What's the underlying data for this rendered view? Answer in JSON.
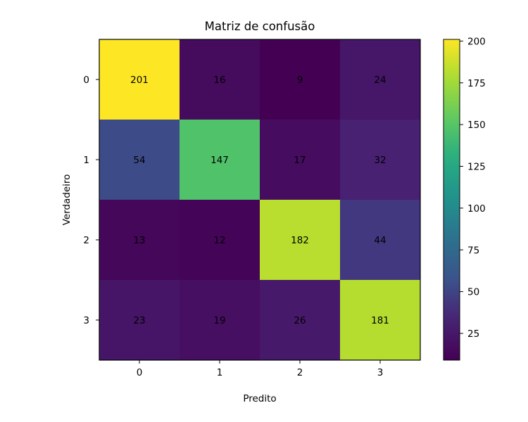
{
  "chart_data": {
    "type": "heatmap",
    "title": "Matriz de confusão",
    "xlabel": "Predito",
    "ylabel": "Verdadeiro",
    "x_categories": [
      "0",
      "1",
      "2",
      "3"
    ],
    "y_categories": [
      "0",
      "1",
      "2",
      "3"
    ],
    "values": [
      [
        201,
        16,
        9,
        24
      ],
      [
        54,
        147,
        17,
        32
      ],
      [
        13,
        12,
        182,
        44
      ],
      [
        23,
        19,
        26,
        181
      ]
    ],
    "colormap": "viridis",
    "colorbar": {
      "range": [
        9,
        201
      ],
      "ticks": [
        25,
        50,
        75,
        100,
        125,
        150,
        175,
        200
      ]
    },
    "grid": false
  }
}
